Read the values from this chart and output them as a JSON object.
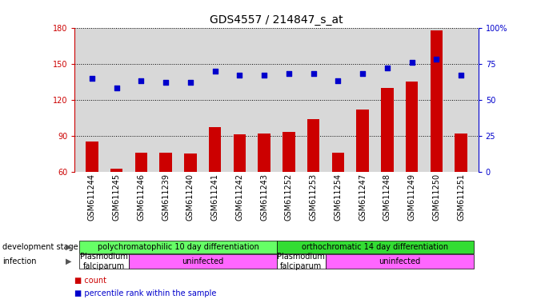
{
  "title": "GDS4557 / 214847_s_at",
  "samples": [
    "GSM611244",
    "GSM611245",
    "GSM611246",
    "GSM611239",
    "GSM611240",
    "GSM611241",
    "GSM611242",
    "GSM611243",
    "GSM611252",
    "GSM611253",
    "GSM611254",
    "GSM611247",
    "GSM611248",
    "GSM611249",
    "GSM611250",
    "GSM611251"
  ],
  "count_values": [
    85,
    63,
    76,
    76,
    75,
    97,
    91,
    92,
    93,
    104,
    76,
    112,
    130,
    135,
    178,
    92
  ],
  "percentile_values": [
    65,
    58,
    63,
    62,
    62,
    70,
    67,
    67,
    68,
    68,
    63,
    68,
    72,
    76,
    78,
    67
  ],
  "ylim_left": [
    60,
    180
  ],
  "ylim_right": [
    0,
    100
  ],
  "yticks_left": [
    60,
    90,
    120,
    150,
    180
  ],
  "yticks_right": [
    0,
    25,
    50,
    75,
    100
  ],
  "bar_color": "#cc0000",
  "dot_color": "#0000cc",
  "background_color": "#ffffff",
  "plot_bg_color": "#d8d8d8",
  "dev_stage_groups": [
    {
      "label": "polychromatophilic 10 day differentiation",
      "start": 0,
      "end": 7,
      "color": "#66ff66"
    },
    {
      "label": "orthochromatic 14 day differentiation",
      "start": 8,
      "end": 15,
      "color": "#33dd33"
    }
  ],
  "infection_groups": [
    {
      "label": "Plasmodium\nfalciparum",
      "start": 0,
      "end": 1,
      "color": "#ffffff"
    },
    {
      "label": "uninfected",
      "start": 2,
      "end": 7,
      "color": "#ff66ff"
    },
    {
      "label": "Plasmodium\nfalciparum",
      "start": 8,
      "end": 9,
      "color": "#ffffff"
    },
    {
      "label": "uninfected",
      "start": 10,
      "end": 15,
      "color": "#ff66ff"
    }
  ],
  "left_label_dev": "development stage",
  "left_label_inf": "infection",
  "legend_count": "count",
  "legend_pct": "percentile rank within the sample",
  "title_fontsize": 10,
  "tick_fontsize": 7,
  "label_fontsize": 7.5,
  "annot_fontsize": 7
}
